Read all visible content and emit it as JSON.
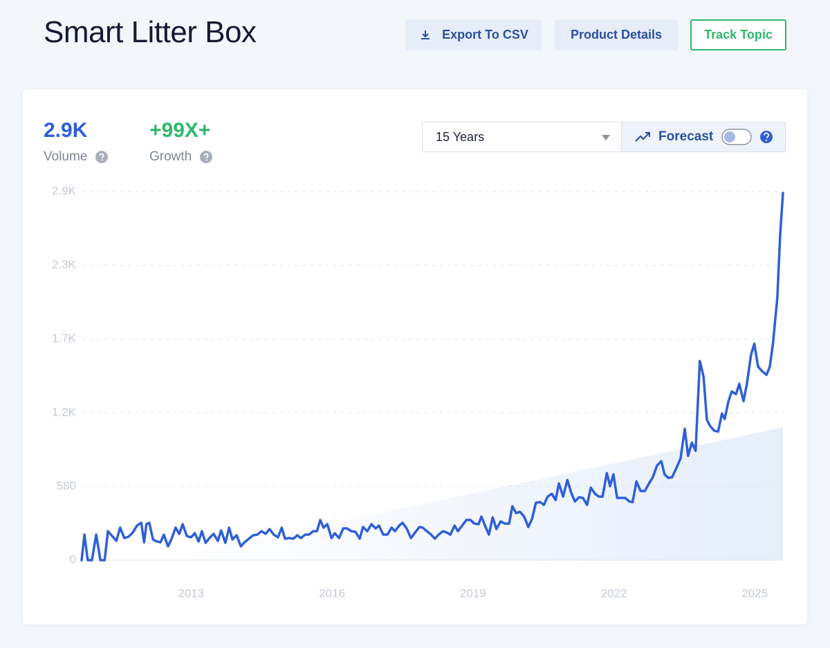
{
  "header": {
    "title": "Smart Litter Box",
    "buttons": [
      "Export To CSV",
      "Product Details",
      "Track Topic"
    ]
  },
  "stats": [
    {
      "value": "2.9K",
      "label": "Volume"
    },
    {
      "value": "+99X+",
      "label": "Growth"
    }
  ],
  "controls": {
    "range": "15 Years",
    "forecast": "Forecast"
  },
  "chart_data": {
    "type": "line",
    "x": [
      2010.67,
      2010.73,
      2010.8,
      2010.89,
      2010.98,
      2011.07,
      2011.16,
      2011.23,
      2011.32,
      2011.41,
      2011.49,
      2011.58,
      2011.67,
      2011.76,
      2011.85,
      2011.94,
      2012.0,
      2012.05,
      2012.11,
      2012.19,
      2012.27,
      2012.35,
      2012.42,
      2012.51,
      2012.58,
      2012.67,
      2012.75,
      2012.82,
      2012.91,
      2013.0,
      2013.08,
      2013.16,
      2013.23,
      2013.31,
      2013.39,
      2013.48,
      2013.57,
      2013.64,
      2013.73,
      2013.81,
      2013.88,
      2013.97,
      2014.06,
      2014.14,
      2014.23,
      2014.32,
      2014.41,
      2014.5,
      2014.59,
      2014.67,
      2014.76,
      2014.85,
      2014.93,
      2015.0,
      2015.09,
      2015.18,
      2015.26,
      2015.34,
      2015.43,
      2015.51,
      2015.6,
      2015.68,
      2015.75,
      2015.82,
      2015.9,
      2015.99,
      2016.06,
      2016.15,
      2016.24,
      2016.32,
      2016.41,
      2016.5,
      2016.59,
      2016.66,
      2016.75,
      2016.84,
      2016.93,
      2017.0,
      2017.09,
      2017.18,
      2017.27,
      2017.34,
      2017.43,
      2017.5,
      2017.59,
      2017.68,
      2017.77,
      2017.86,
      2017.93,
      2018.02,
      2018.11,
      2018.19,
      2018.27,
      2018.36,
      2018.44,
      2018.52,
      2018.61,
      2018.68,
      2018.77,
      2018.86,
      2018.95,
      2019.03,
      2019.12,
      2019.18,
      2019.27,
      2019.34,
      2019.42,
      2019.5,
      2019.59,
      2019.68,
      2019.77,
      2019.84,
      2019.92,
      2020.0,
      2020.09,
      2020.18,
      2020.26,
      2020.34,
      2020.43,
      2020.51,
      2020.59,
      2020.68,
      2020.76,
      2020.83,
      2020.92,
      2021.01,
      2021.09,
      2021.17,
      2021.26,
      2021.34,
      2021.43,
      2021.51,
      2021.6,
      2021.68,
      2021.76,
      2021.85,
      2021.92,
      2021.99,
      2022.07,
      2022.15,
      2022.24,
      2022.33,
      2022.4,
      2022.48,
      2022.57,
      2022.66,
      2022.74,
      2022.83,
      2022.92,
      2023.01,
      2023.08,
      2023.16,
      2023.24,
      2023.33,
      2023.42,
      2023.51,
      2023.58,
      2023.66,
      2023.74,
      2023.83,
      2023.91,
      2023.98,
      2024.05,
      2024.14,
      2024.22,
      2024.3,
      2024.36,
      2024.44,
      2024.51,
      2024.6,
      2024.67,
      2024.76,
      2024.83,
      2024.92,
      2024.99,
      2025.07,
      2025.16,
      2025.25,
      2025.32,
      2025.39,
      2025.48,
      2025.54,
      2025.6
    ],
    "series": [
      {
        "color": "#2f5fd6",
        "values": [
          0,
          201,
          0,
          0,
          201,
          0,
          0,
          228,
          190,
          152,
          256,
          174,
          185,
          218,
          272,
          294,
          141,
          283,
          294,
          163,
          147,
          141,
          201,
          109,
          163,
          256,
          207,
          283,
          190,
          180,
          212,
          147,
          228,
          136,
          174,
          207,
          152,
          234,
          136,
          256,
          163,
          196,
          109,
          141,
          169,
          196,
          201,
          228,
          207,
          245,
          201,
          180,
          256,
          169,
          174,
          169,
          196,
          174,
          201,
          201,
          228,
          228,
          316,
          256,
          283,
          174,
          212,
          174,
          250,
          250,
          228,
          223,
          169,
          261,
          228,
          283,
          250,
          272,
          201,
          201,
          256,
          228,
          272,
          294,
          250,
          174,
          218,
          261,
          256,
          228,
          201,
          169,
          201,
          228,
          218,
          201,
          272,
          228,
          272,
          316,
          316,
          288,
          283,
          343,
          261,
          201,
          337,
          245,
          305,
          288,
          288,
          424,
          370,
          381,
          343,
          261,
          326,
          452,
          457,
          435,
          500,
          522,
          473,
          604,
          500,
          631,
          533,
          462,
          495,
          490,
          435,
          571,
          522,
          500,
          500,
          685,
          582,
          675,
          490,
          490,
          490,
          462,
          457,
          620,
          544,
          544,
          598,
          653,
          745,
          778,
          675,
          647,
          653,
          724,
          800,
          1034,
          821,
          925,
          860,
          1567,
          1442,
          1104,
          1055,
          1017,
          1012,
          1153,
          1110,
          1251,
          1327,
          1306,
          1387,
          1251,
          1382,
          1616,
          1703,
          1523,
          1485,
          1458,
          1523,
          1714,
          2067,
          2557,
          2889
        ]
      }
    ],
    "trend": {
      "x": [
        2012.32,
        2025.6
      ],
      "values": [
        0,
        1045
      ],
      "color": "#e6eefa"
    },
    "xlim": [
      2010.67,
      2025.6
    ],
    "xticks": [
      2013,
      2016,
      2019,
      2022,
      2025
    ],
    "ylim": [
      0,
      2900
    ],
    "yticks": [
      0,
      580,
      {
        "value": 1160,
        "label": "1.2K"
      },
      {
        "value": 1740,
        "label": "1.7K"
      },
      {
        "value": 2320,
        "label": "2.3K"
      },
      {
        "value": 2900,
        "label": "2.9K"
      }
    ],
    "grid": true
  }
}
